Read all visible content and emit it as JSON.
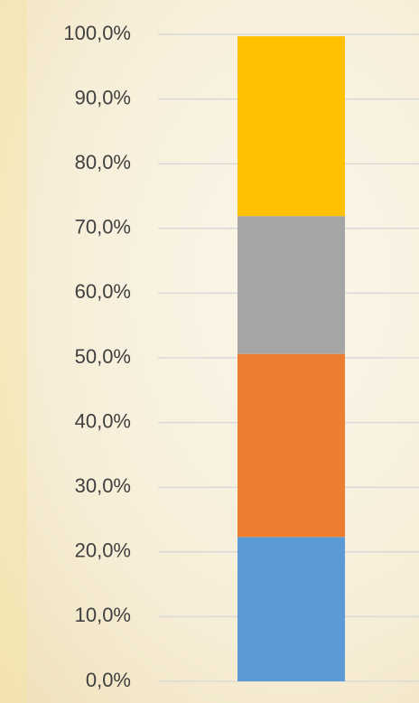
{
  "chart_data": {
    "type": "stacked_bar",
    "categories": [
      null
    ],
    "series": [
      {
        "color": "#5b9bd5",
        "values": [
          22.3
        ]
      },
      {
        "color": "#ed7d31",
        "values": [
          28.3
        ]
      },
      {
        "color": "#a5a5a5",
        "values": [
          21.3
        ]
      },
      {
        "color": "#ffc000",
        "values": [
          27.8
        ]
      }
    ],
    "ylim": [
      0,
      100
    ],
    "yticks": [
      {
        "value": 0,
        "label": "0,0%"
      },
      {
        "value": 10,
        "label": "10,0%"
      },
      {
        "value": 20,
        "label": "20,0%"
      },
      {
        "value": 30,
        "label": "30,0%"
      },
      {
        "value": 40,
        "label": "40,0%"
      },
      {
        "value": 50,
        "label": "50,0%"
      },
      {
        "value": 60,
        "label": "60,0%"
      },
      {
        "value": 70,
        "label": "70,0%"
      },
      {
        "value": 80,
        "label": "80,0%"
      },
      {
        "value": 90,
        "label": "90,0%"
      },
      {
        "value": 100,
        "label": "100,0%"
      }
    ],
    "grid": true
  }
}
